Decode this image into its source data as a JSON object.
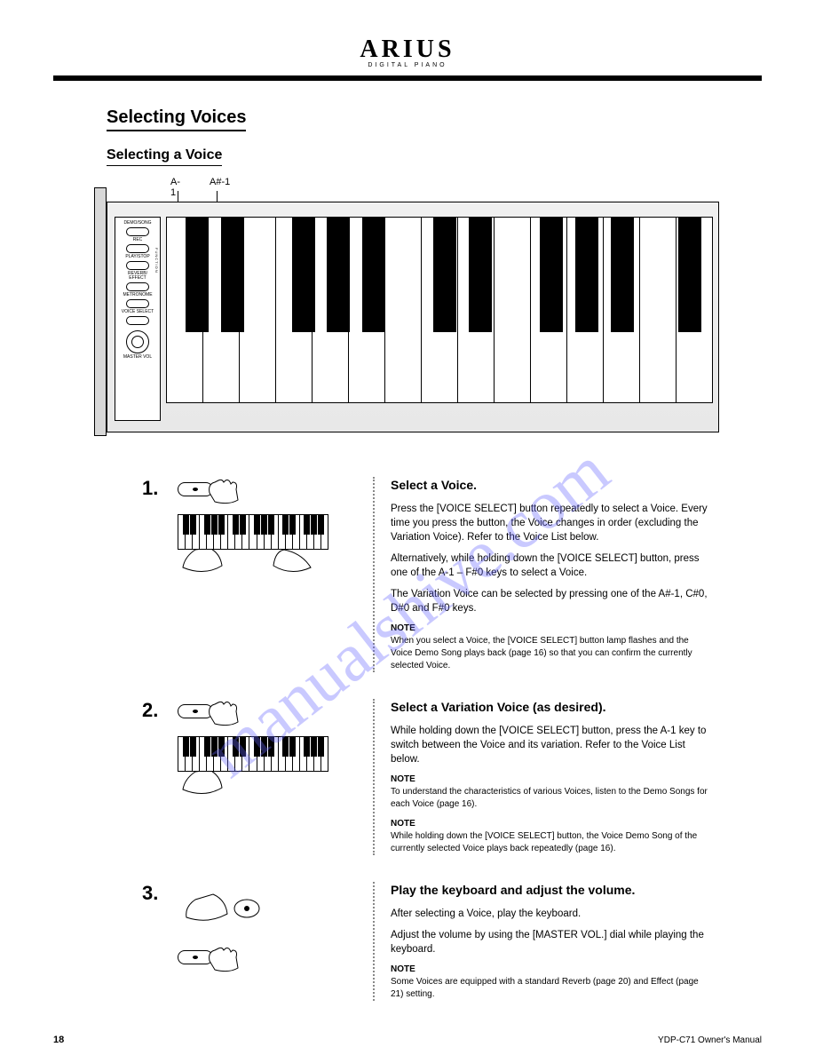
{
  "brand": {
    "name": "ARIUS",
    "tagline": "DIGITAL PIANO"
  },
  "section": {
    "title": "Selecting Voices",
    "subtitle": "Selecting a Voice"
  },
  "piano": {
    "key_label_1": "A-1",
    "key_label_2": "A#-1",
    "panel": {
      "btn1": "DEMO/SONG",
      "btn2": "REC",
      "btn3": "PLAY/STOP",
      "btn4": "REVERB/\nEFFECT",
      "btn5": "METRONOME",
      "btn6": "VOICE SELECT",
      "func": "FUNCTION",
      "knob": "MASTER VOL"
    },
    "black_key_positions_pct": [
      5.5,
      12.0,
      25.0,
      31.5,
      38.0,
      51.0,
      57.5,
      70.5,
      77.0,
      83.5,
      96.0
    ],
    "white_key_count": 15
  },
  "steps": [
    {
      "num": "1.",
      "heading": "Select a Voice.",
      "paragraphs": [
        "Press the [VOICE SELECT] button repeatedly to select a Voice. Every time you press the button, the Voice changes in order (excluding the Variation Voice). Refer to the Voice List below.",
        "Alternatively, while holding down the [VOICE SELECT] button, press one of the A-1 – F#0 keys to select a Voice.",
        "The Variation Voice can be selected by pressing one of the A#-1, C#0, D#0 and F#0 keys."
      ],
      "note_label": "NOTE",
      "note_text": "When you select a Voice, the [VOICE SELECT] button lamp flashes and the Voice Demo Song plays back (page 16) so that you can confirm the currently selected Voice."
    },
    {
      "num": "2.",
      "heading": "Select a Variation Voice (as desired).",
      "paragraphs": [
        "While holding down the [VOICE SELECT] button, press the A-1 key to switch between the Voice and its variation. Refer to the Voice List below."
      ],
      "note_label": "NOTE",
      "notes": [
        "To understand the characteristics of various Voices, listen to the Demo Songs for each Voice (page 16).",
        "While holding down the [VOICE SELECT] button, the Voice Demo Song of the currently selected Voice plays back repeatedly (page 16)."
      ]
    },
    {
      "num": "3.",
      "heading": "Play the keyboard and adjust the volume.",
      "paragraphs": [
        "After selecting a Voice, play the keyboard.",
        "Adjust the volume by using the [MASTER VOL.] dial while playing the keyboard."
      ],
      "note_label": "NOTE",
      "note_text": "Some Voices are equipped with a standard Reverb (page 20) and Effect (page 21) setting."
    }
  ],
  "footer": {
    "page": "18",
    "ref": "YDP-C71 Owner's Manual"
  },
  "colors": {
    "watermark": "rgba(100,100,255,0.35)",
    "rule": "#000000",
    "panel_bg": "#e8e8e8"
  }
}
